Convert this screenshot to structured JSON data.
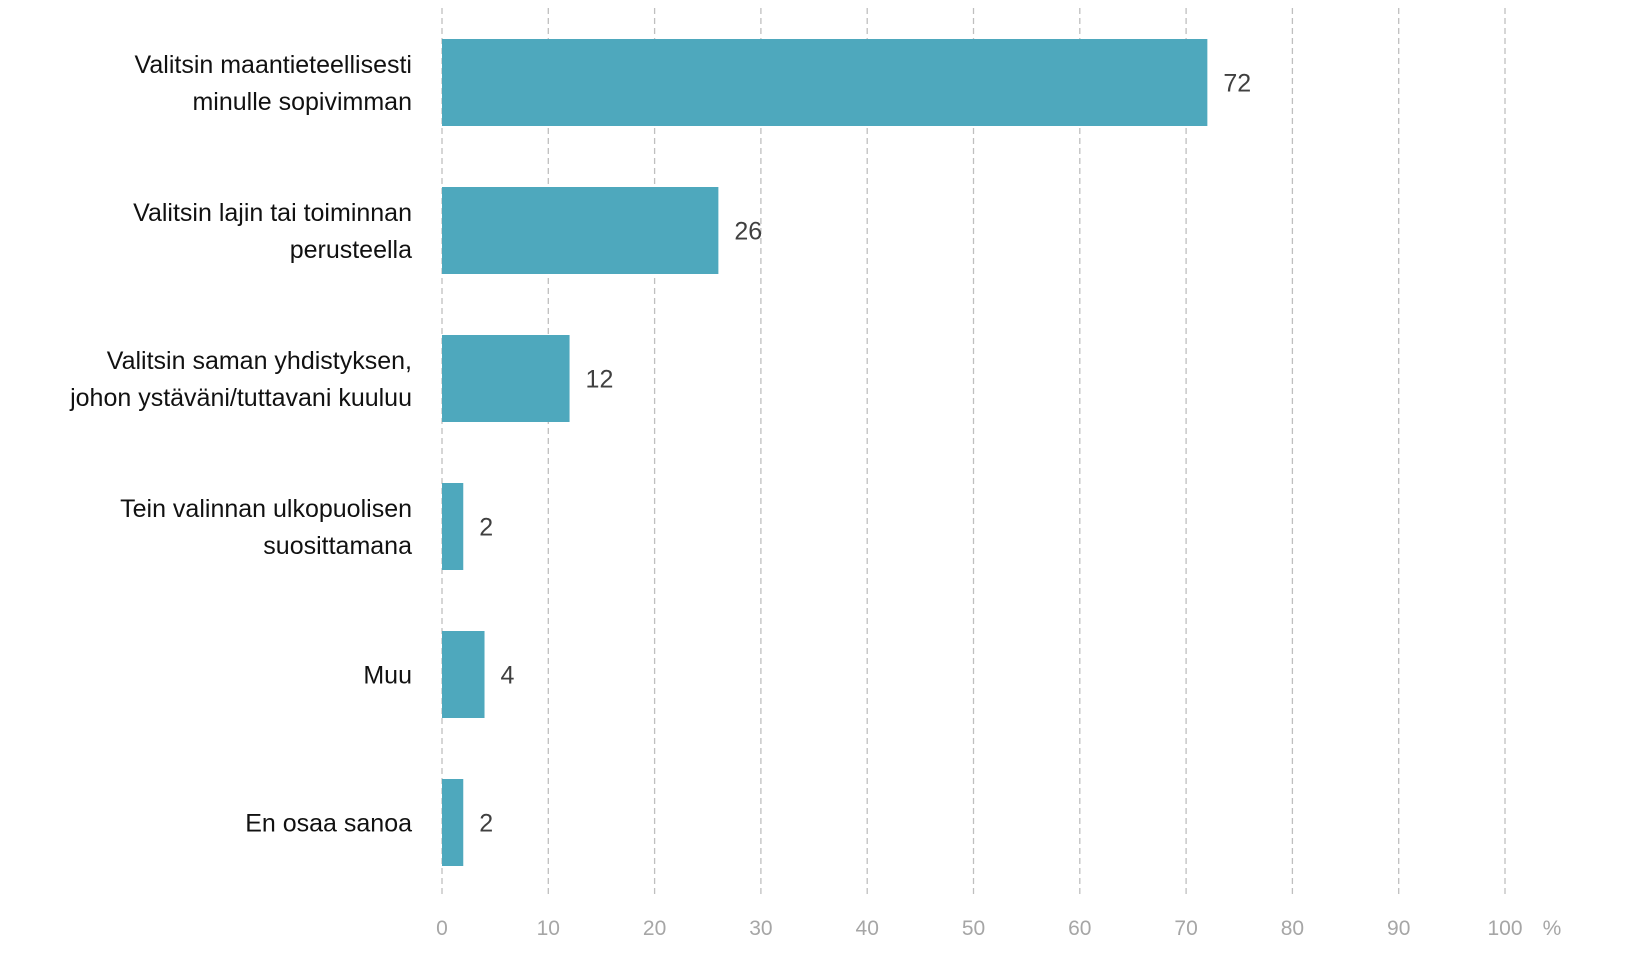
{
  "chart_data": {
    "type": "bar",
    "orientation": "horizontal",
    "categories": [
      [
        "Valitsin maantieteellisesti",
        "minulle sopivimman"
      ],
      [
        "Valitsin lajin tai toiminnan",
        "perusteella"
      ],
      [
        "Valitsin saman yhdistyksen,",
        "johon ystäväni/tuttavani kuuluu"
      ],
      [
        "Tein valinnan ulkopuolisen",
        "suosittamana"
      ],
      [
        "Muu"
      ],
      [
        "En osaa sanoa"
      ]
    ],
    "values": [
      72,
      26,
      12,
      2,
      4,
      2
    ],
    "value_labels": [
      "72",
      "26",
      "12",
      "2",
      "4",
      "2"
    ],
    "xlim": [
      0,
      100
    ],
    "x_ticks": [
      0,
      10,
      20,
      30,
      40,
      50,
      60,
      70,
      80,
      90,
      100
    ],
    "x_tick_labels": [
      "0",
      "10",
      "20",
      "30",
      "40",
      "50",
      "60",
      "70",
      "80",
      "90",
      "100"
    ],
    "x_unit": "%",
    "grid": true,
    "grid_style": "dashed-vertical",
    "legend": "none",
    "colors": {
      "bar": "#4ea8bd",
      "grid": "#bfbfbf",
      "tick_text": "#a6a6a6",
      "category_text": "#111111",
      "value_text": "#404040"
    }
  }
}
